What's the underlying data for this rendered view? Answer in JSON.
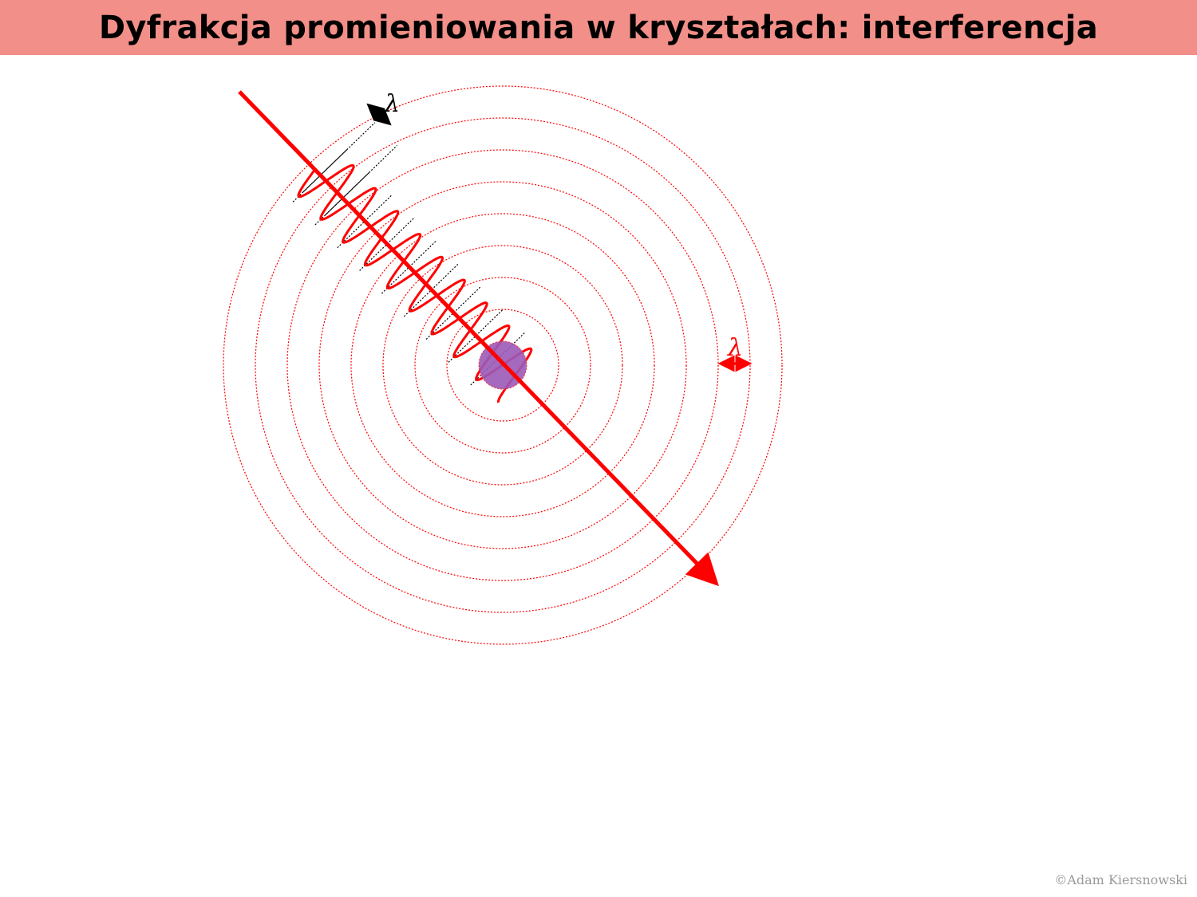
{
  "title": "Dyfrakcja promieniowania w kryształach: interferencja",
  "diagram": {
    "incoming_wave_label": "λ",
    "scattered_wave_label": "λ",
    "wave_color": "#ff0000",
    "atom_color": "#8e44ad",
    "guide_color": "#000000",
    "circle_count": 8,
    "wave_crest_count": 9
  },
  "copyright": "©Adam Kiersnowski"
}
